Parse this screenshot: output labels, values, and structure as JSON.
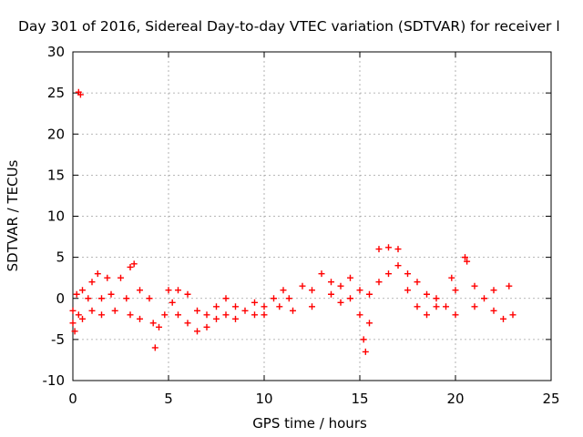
{
  "chart_data": {
    "type": "scatter",
    "title": "Day 301 of 2016, Sidereal Day-to-day VTEC variation (SDTVAR) for receiver l",
    "xlabel": "GPS time / hours",
    "ylabel": "SDTVAR / TECUs",
    "xlim": [
      0,
      25
    ],
    "ylim": [
      -10,
      30
    ],
    "xticks": [
      0,
      5,
      10,
      15,
      20,
      25
    ],
    "yticks": [
      -10,
      -5,
      0,
      5,
      10,
      15,
      20,
      25,
      30
    ],
    "grid": true,
    "marker": "+",
    "color": "#ff0000",
    "series": [
      {
        "values": [
          [
            0.3,
            25.1
          ],
          [
            0.4,
            24.8
          ],
          [
            0.0,
            -1.5
          ],
          [
            0.0,
            -3.0
          ],
          [
            0.1,
            -4.0
          ],
          [
            0.2,
            0.5
          ],
          [
            0.3,
            -2.0
          ],
          [
            0.5,
            1.0
          ],
          [
            0.5,
            -2.5
          ],
          [
            0.8,
            0.0
          ],
          [
            1.0,
            2.0
          ],
          [
            1.0,
            -1.5
          ],
          [
            1.3,
            3.0
          ],
          [
            1.5,
            0.0
          ],
          [
            1.5,
            -2.0
          ],
          [
            1.8,
            2.5
          ],
          [
            2.0,
            0.5
          ],
          [
            2.2,
            -1.5
          ],
          [
            2.5,
            2.5
          ],
          [
            2.8,
            0.0
          ],
          [
            3.0,
            3.8
          ],
          [
            3.2,
            4.2
          ],
          [
            3.5,
            1.0
          ],
          [
            3.0,
            -2.0
          ],
          [
            3.5,
            -2.5
          ],
          [
            4.0,
            0.0
          ],
          [
            4.2,
            -3.0
          ],
          [
            4.3,
            -6.0
          ],
          [
            4.5,
            -3.5
          ],
          [
            4.8,
            -2.0
          ],
          [
            5.0,
            1.0
          ],
          [
            5.2,
            -0.5
          ],
          [
            5.5,
            1.0
          ],
          [
            5.5,
            -2.0
          ],
          [
            6.0,
            0.5
          ],
          [
            6.0,
            -3.0
          ],
          [
            6.5,
            -1.5
          ],
          [
            6.5,
            -4.0
          ],
          [
            7.0,
            -2.0
          ],
          [
            7.0,
            -3.5
          ],
          [
            7.5,
            -1.0
          ],
          [
            7.5,
            -2.5
          ],
          [
            8.0,
            0.0
          ],
          [
            8.0,
            -2.0
          ],
          [
            8.5,
            -1.0
          ],
          [
            8.5,
            -2.5
          ],
          [
            9.0,
            -1.5
          ],
          [
            9.5,
            -2.0
          ],
          [
            9.5,
            -0.5
          ],
          [
            10.0,
            -1.0
          ],
          [
            10.0,
            -2.0
          ],
          [
            10.5,
            0.0
          ],
          [
            10.8,
            -1.0
          ],
          [
            11.0,
            1.0
          ],
          [
            11.3,
            0.0
          ],
          [
            11.5,
            -1.5
          ],
          [
            12.0,
            1.5
          ],
          [
            12.5,
            1.0
          ],
          [
            12.5,
            -1.0
          ],
          [
            13.0,
            3.0
          ],
          [
            13.5,
            2.0
          ],
          [
            13.5,
            0.5
          ],
          [
            14.0,
            1.5
          ],
          [
            14.0,
            -0.5
          ],
          [
            14.5,
            2.5
          ],
          [
            14.5,
            0.0
          ],
          [
            15.0,
            1.0
          ],
          [
            15.0,
            -2.0
          ],
          [
            15.2,
            -5.0
          ],
          [
            15.3,
            -6.5
          ],
          [
            15.5,
            0.5
          ],
          [
            15.5,
            -3.0
          ],
          [
            16.0,
            2.0
          ],
          [
            16.0,
            6.0
          ],
          [
            16.5,
            6.2
          ],
          [
            17.0,
            6.0
          ],
          [
            16.5,
            3.0
          ],
          [
            17.0,
            4.0
          ],
          [
            17.5,
            3.0
          ],
          [
            17.5,
            1.0
          ],
          [
            18.0,
            2.0
          ],
          [
            18.0,
            -1.0
          ],
          [
            18.5,
            0.5
          ],
          [
            18.5,
            -2.0
          ],
          [
            19.0,
            -1.0
          ],
          [
            19.0,
            0.0
          ],
          [
            19.5,
            -1.0
          ],
          [
            19.8,
            2.5
          ],
          [
            20.0,
            1.0
          ],
          [
            20.0,
            -2.0
          ],
          [
            20.5,
            5.0
          ],
          [
            20.6,
            4.5
          ],
          [
            21.0,
            1.5
          ],
          [
            21.0,
            -1.0
          ],
          [
            21.5,
            0.0
          ],
          [
            22.0,
            1.0
          ],
          [
            22.0,
            -1.5
          ],
          [
            22.5,
            -2.5
          ],
          [
            22.8,
            1.5
          ],
          [
            23.0,
            -2.0
          ]
        ]
      }
    ]
  }
}
